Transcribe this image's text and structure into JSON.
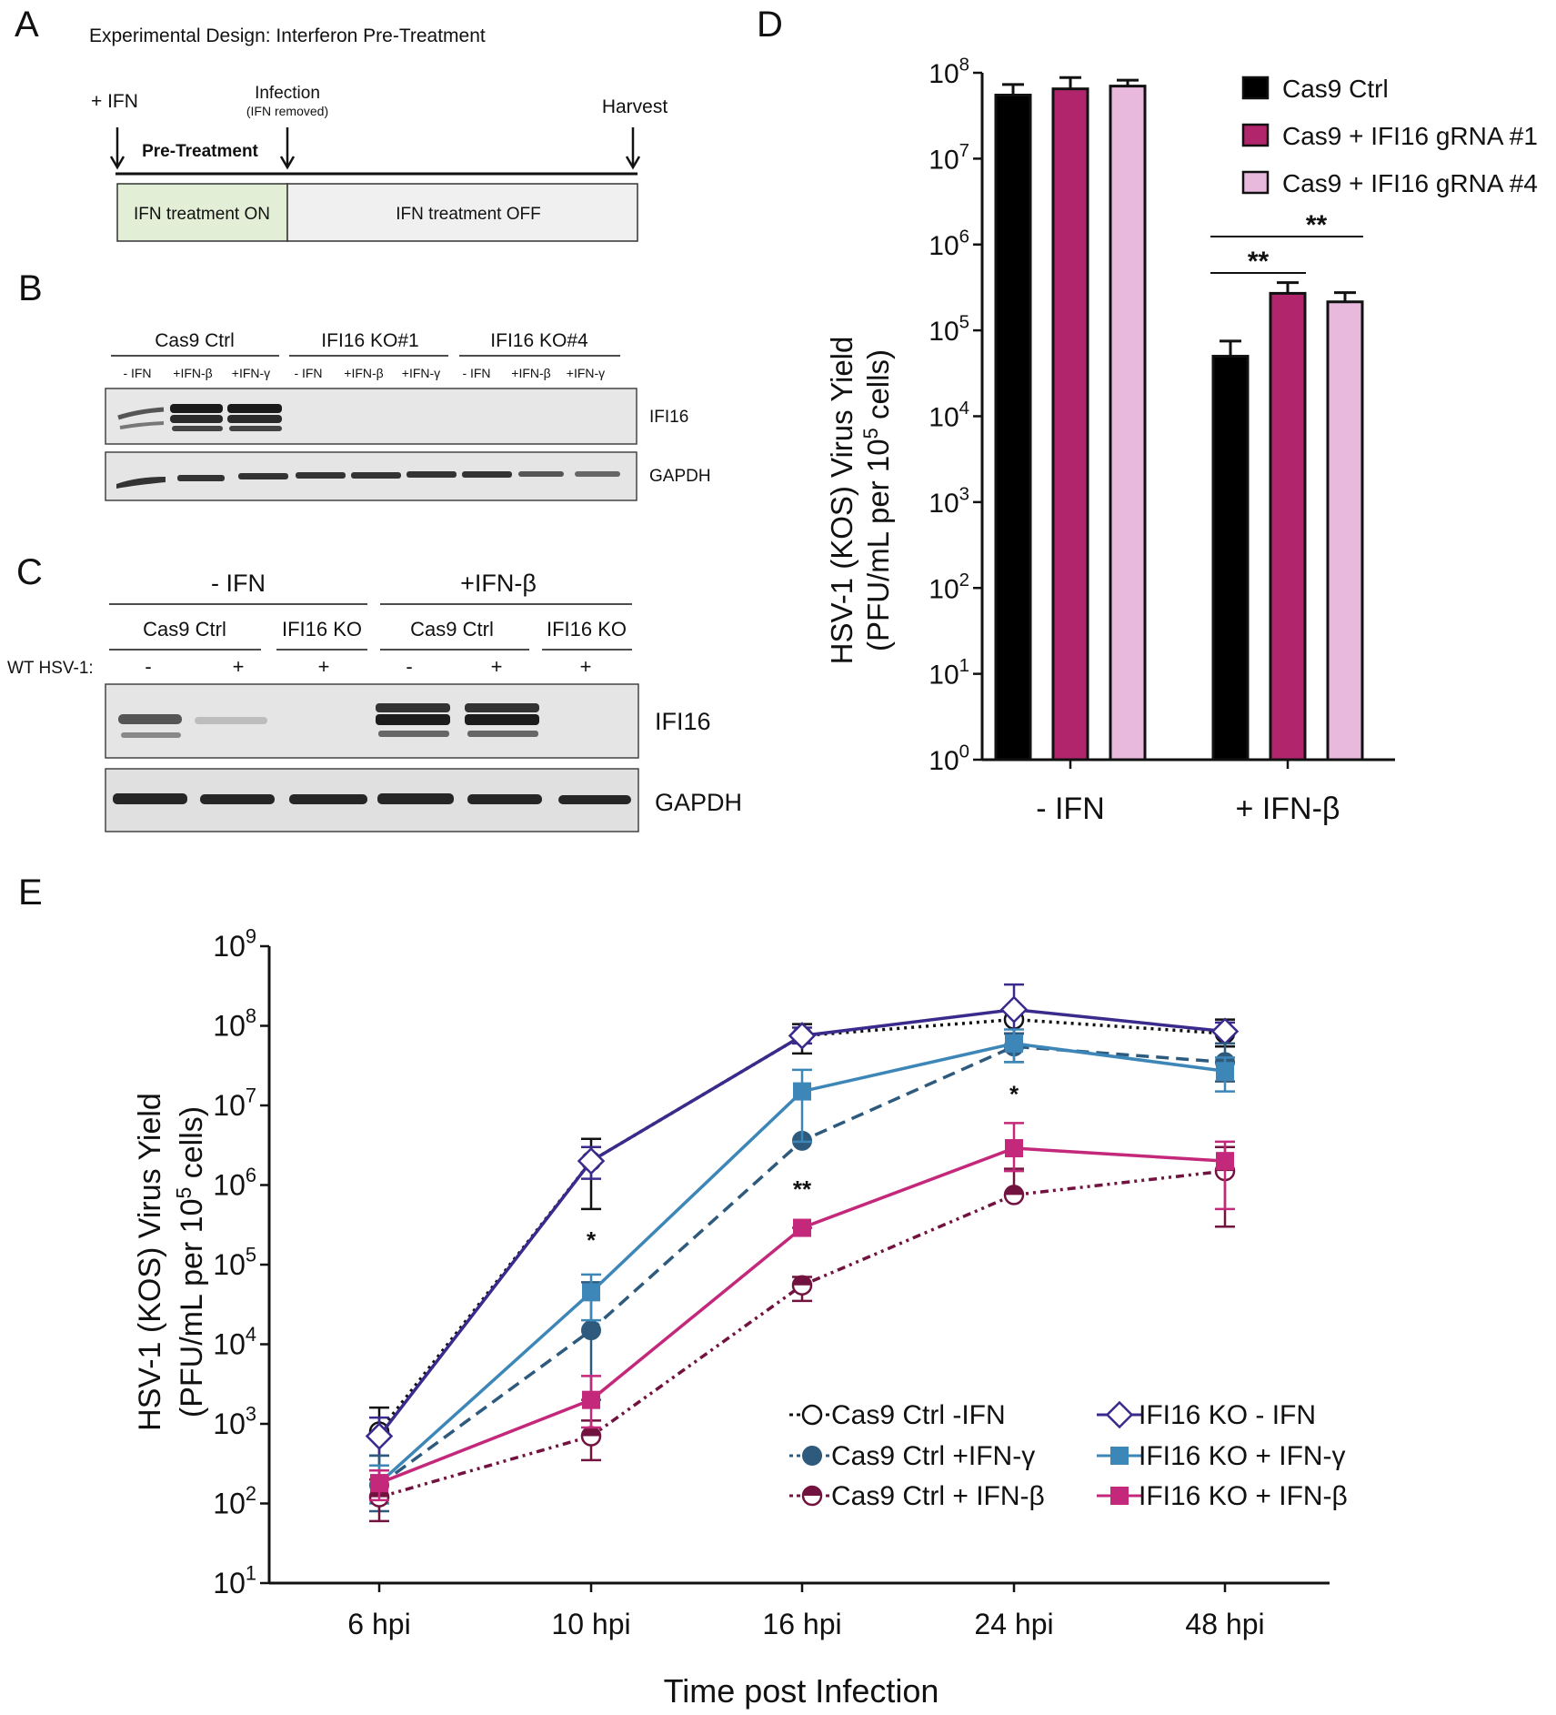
{
  "panel_labels": [
    "A",
    "B",
    "C",
    "D",
    "E"
  ],
  "panel_a": {
    "title": "Experimental Design: Interferon Pre-Treatment",
    "plus_ifn": "+ IFN",
    "infection": "Infection",
    "ifn_removed": "(IFN removed)",
    "harvest": "Harvest",
    "pretreatment": "Pre-Treatment",
    "box_on": "IFN treatment ON",
    "box_off": "IFN treatment OFF",
    "colors": {
      "on": "#e2efd6",
      "off": "#f0f0f0"
    }
  },
  "panel_b": {
    "groups": [
      "Cas9 Ctrl",
      "IFI16 KO#1",
      "IFI16 KO#4"
    ],
    "lanes": [
      "- IFN",
      "+IFN-β",
      "+IFN-γ",
      "- IFN",
      "+IFN-β",
      "+IFN-γ",
      "- IFN",
      "+IFN-β",
      "+IFN-γ"
    ],
    "blots": [
      "IFI16",
      "GAPDH"
    ]
  },
  "panel_c": {
    "conditions": [
      "- IFN",
      "+IFN-β"
    ],
    "groups": [
      "Cas9 Ctrl",
      "IFI16 KO",
      "Cas9 Ctrl",
      "IFI16 KO"
    ],
    "row_label": "WT HSV-1:",
    "signs": [
      "-",
      "+",
      "+",
      "-",
      "+",
      "+"
    ],
    "blots": [
      "IFI16",
      "GAPDH"
    ]
  },
  "chart_data": [
    {
      "panel": "D",
      "type": "bar",
      "ylabel_line1": "HSV-1 (KOS) Virus Yield",
      "ylabel_line2": "(PFU/mL per 10",
      "ylabel_sup": "5",
      "ylabel_end": " cells)",
      "yscale": "log",
      "ylim": [
        1,
        100000000
      ],
      "yticks": [
        {
          "base": "10",
          "exp": "0"
        },
        {
          "base": "10",
          "exp": "1"
        },
        {
          "base": "10",
          "exp": "2"
        },
        {
          "base": "10",
          "exp": "3"
        },
        {
          "base": "10",
          "exp": "4"
        },
        {
          "base": "10",
          "exp": "5"
        },
        {
          "base": "10",
          "exp": "6"
        },
        {
          "base": "10",
          "exp": "7"
        },
        {
          "base": "10",
          "exp": "8"
        }
      ],
      "categories": [
        "- IFN",
        "+ IFN-β"
      ],
      "series": [
        {
          "name": "Cas9 Ctrl",
          "color": "#000000",
          "values": [
            55000000,
            50000
          ],
          "errors": [
            73000000,
            75000
          ]
        },
        {
          "name": "Cas9 + IFI16 gRNA #1",
          "color": "#b0256b",
          "values": [
            65000000,
            270000
          ],
          "errors": [
            88000000,
            360000
          ]
        },
        {
          "name": "Cas9 + IFI16 gRNA #4",
          "color": "#e8b9dd",
          "values": [
            70000000,
            215000
          ],
          "errors": [
            82000000,
            275000
          ]
        }
      ],
      "annotations": [
        "**",
        "**"
      ],
      "legend": "top-right"
    },
    {
      "panel": "E",
      "type": "line",
      "ylabel_line1": "HSV-1 (KOS) Virus Yield",
      "ylabel_line2": "(PFU/mL per 10",
      "ylabel_sup": "5",
      "ylabel_end": " cells)",
      "xlabel": "Time post Infection",
      "yscale": "log",
      "ylim": [
        10,
        1000000000
      ],
      "yticks": [
        {
          "base": "10",
          "exp": "1"
        },
        {
          "base": "10",
          "exp": "2"
        },
        {
          "base": "10",
          "exp": "3"
        },
        {
          "base": "10",
          "exp": "4"
        },
        {
          "base": "10",
          "exp": "5"
        },
        {
          "base": "10",
          "exp": "6"
        },
        {
          "base": "10",
          "exp": "7"
        },
        {
          "base": "10",
          "exp": "8"
        },
        {
          "base": "10",
          "exp": "9"
        }
      ],
      "categories": [
        "6 hpi",
        "10 hpi",
        "16 hpi",
        "24 hpi",
        "48 hpi"
      ],
      "series": [
        {
          "name": "Cas9 Ctrl -IFN",
          "color": "#111111",
          "dash": "3,5",
          "marker": "circle-open",
          "values": [
            800,
            2000000,
            75000000,
            120000000,
            80000000
          ],
          "err_hi": [
            1600,
            3800000,
            105000000,
            165000000,
            120000000
          ],
          "err_lo": [
            300,
            500000,
            45000000,
            80000000,
            55000000
          ]
        },
        {
          "name": "IFI16 KO - IFN",
          "color": "#3a2a8c",
          "dash": "",
          "marker": "diamond-open",
          "values": [
            700,
            2000000,
            75000000,
            160000000,
            85000000
          ],
          "err_hi": [
            1200,
            3000000,
            95000000,
            330000000,
            110000000
          ],
          "err_lo": [
            400,
            1200000,
            60000000,
            80000000,
            60000000
          ]
        },
        {
          "name": "Cas9 Ctrl +IFN-γ",
          "color": "#2d5a7d",
          "dash": "14,8",
          "marker": "circle",
          "values": [
            170,
            15000,
            3600000,
            55000000,
            35000000
          ],
          "err_hi": [
            400,
            60000,
            3600000,
            80000000,
            60000000
          ],
          "err_lo": [
            80,
            2000,
            3600000,
            35000000,
            20000000
          ]
        },
        {
          "name": "IFI16 KO + IFN-γ",
          "color": "#3d86b8",
          "dash": "",
          "marker": "square",
          "values": [
            180,
            45000,
            15000000,
            60000000,
            27000000
          ],
          "err_hi": [
            300,
            75000,
            28000000,
            90000000,
            40000000
          ],
          "err_lo": [
            100,
            20000,
            3500000,
            35000000,
            15000000
          ]
        },
        {
          "name": "Cas9 Ctrl + IFN-β",
          "color": "#72123e",
          "dash": "9,5,3,5,3,5",
          "marker": "circle-half",
          "values": [
            120,
            700,
            55000,
            750000,
            1500000
          ],
          "err_hi": [
            200,
            1100,
            70000,
            1600000,
            3000000
          ],
          "err_lo": [
            60,
            350,
            35000,
            750000,
            300000
          ]
        },
        {
          "name": "IFI16 KO + IFN-β",
          "color": "#c4287a",
          "dash": "",
          "marker": "square",
          "values": [
            180,
            2000,
            290000,
            2900000,
            2000000
          ],
          "err_hi": [
            260,
            4000,
            290000,
            6000000,
            3500000
          ],
          "err_lo": [
            110,
            900,
            290000,
            1500000,
            500000
          ]
        }
      ],
      "annotations": [
        {
          "text": "*",
          "category": "10 hpi",
          "value": 160000
        },
        {
          "text": "**",
          "category": "16 hpi",
          "value": 700000
        },
        {
          "text": "*",
          "category": "24 hpi",
          "value": 11000000
        }
      ],
      "legend": "bottom-right"
    }
  ]
}
